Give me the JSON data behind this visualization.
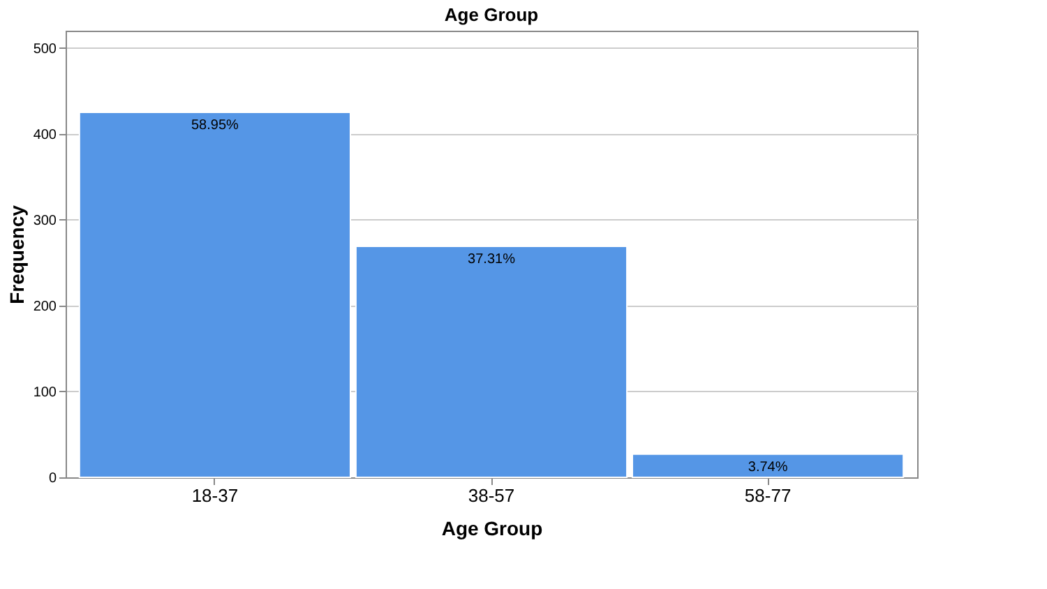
{
  "chart_data": {
    "type": "bar",
    "title": "Age Group",
    "xlabel": "Age Group",
    "ylabel": "Frequency",
    "categories": [
      "18-37",
      "38-57",
      "58-77"
    ],
    "values": [
      425,
      269,
      27
    ],
    "annotations": [
      {
        "text": "58.95%",
        "x": "18-37",
        "y": 425
      },
      {
        "text": "37.31%",
        "x": "38-57",
        "y": 269
      },
      {
        "text": "3.74%",
        "x": "58-77",
        "y": 27
      }
    ],
    "color": "#5596e6",
    "ylim": [
      0,
      520
    ],
    "yticks": [
      0,
      100,
      200,
      300,
      400,
      500
    ],
    "grid": "y"
  }
}
